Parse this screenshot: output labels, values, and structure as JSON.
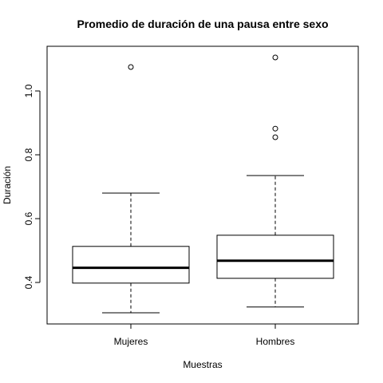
{
  "chart_data": {
    "type": "box",
    "title": "Promedio de duración de una pausa entre sexo",
    "xlabel": "Muestras",
    "ylabel": "Duración",
    "ylim": [
      0.27,
      1.14
    ],
    "y_ticks": [
      "0.4",
      "0.6",
      "0.8",
      "1.0"
    ],
    "y_tick_values": [
      0.4,
      0.6,
      0.8,
      1.0
    ],
    "categories": [
      "Mujeres",
      "Hombres"
    ],
    "boxes": [
      {
        "category": "Mujeres",
        "min": 0.305,
        "q1": 0.398,
        "median": 0.446,
        "q3": 0.513,
        "max": 0.68,
        "outliers": [
          1.075
        ]
      },
      {
        "category": "Hombres",
        "min": 0.323,
        "q1": 0.413,
        "median": 0.468,
        "q3": 0.548,
        "max": 0.735,
        "outliers": [
          1.105,
          0.882,
          0.855
        ]
      }
    ],
    "grid": false,
    "legend": "none"
  }
}
